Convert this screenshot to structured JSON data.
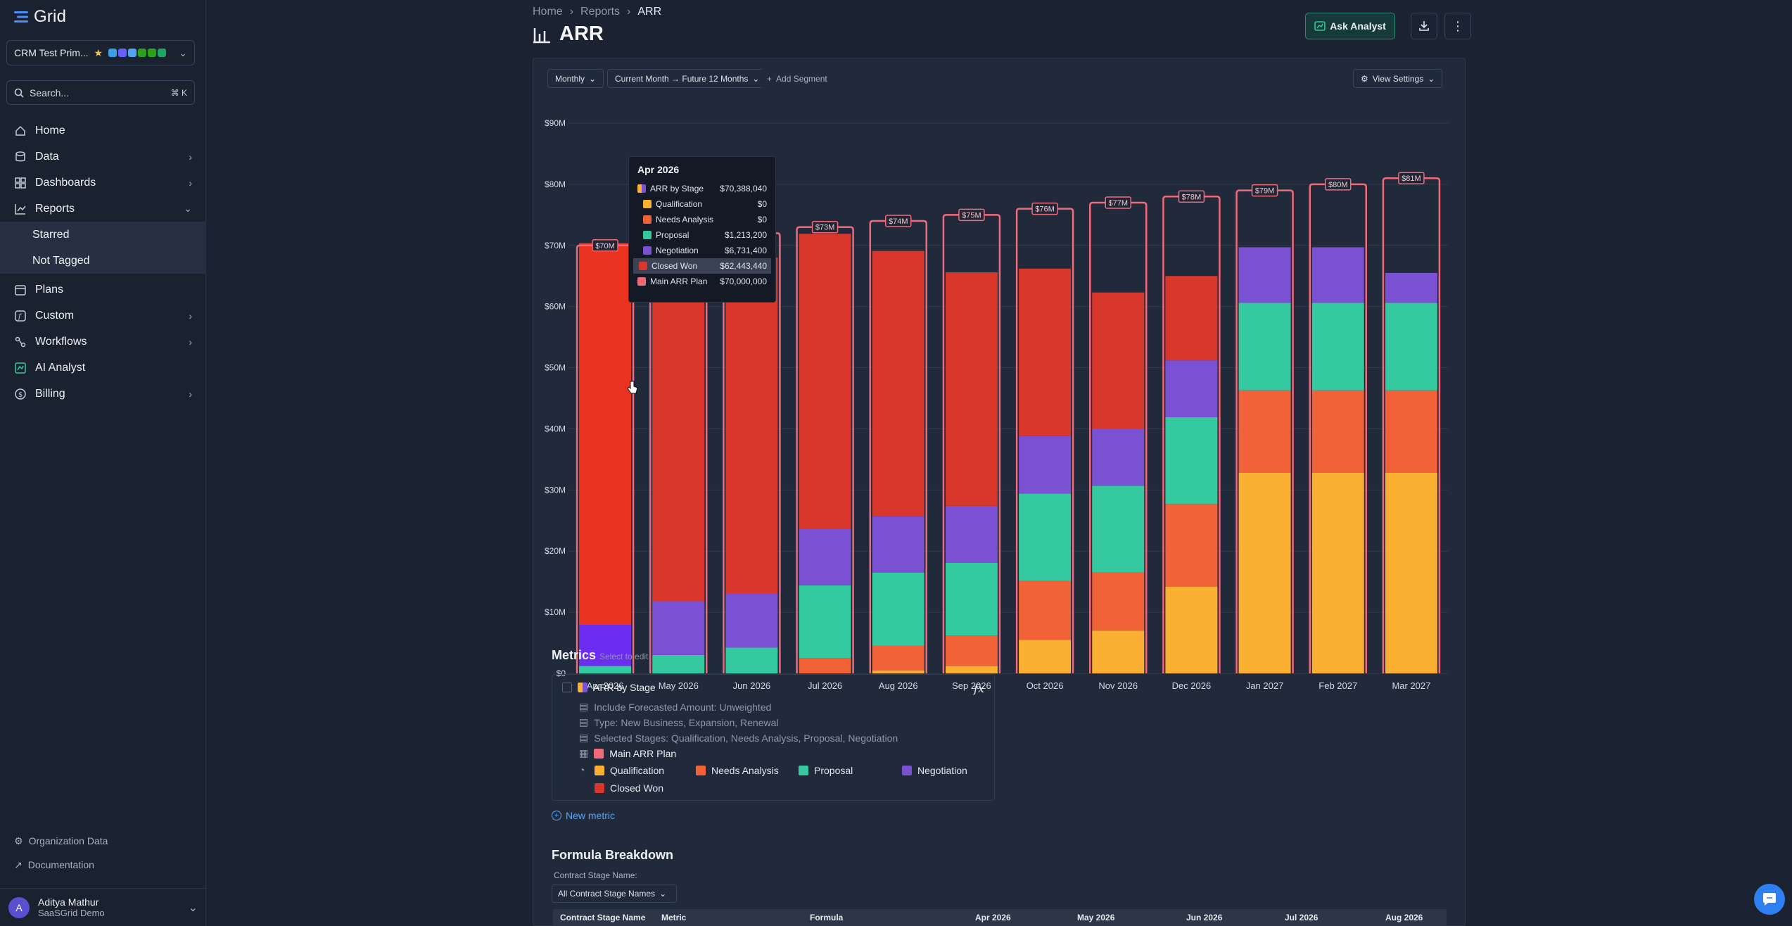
{
  "app": {
    "name": "Grid"
  },
  "workspace": {
    "name": "CRM Test Prim..."
  },
  "search": {
    "label": "Search...",
    "shortcut": "⌘ K"
  },
  "nav": {
    "home": "Home",
    "data": "Data",
    "dashboards": "Dashboards",
    "reports": "Reports",
    "starred": "Starred",
    "not_tagged": "Not Tagged",
    "plans": "Plans",
    "custom": "Custom",
    "workflows": "Workflows",
    "ai_analyst": "AI Analyst",
    "billing": "Billing"
  },
  "footer": {
    "org_data": "Organization Data",
    "docs": "Documentation"
  },
  "user": {
    "name": "Aditya Mathur",
    "org": "SaaSGrid Demo",
    "initial": "A"
  },
  "breadcrumb": {
    "home": "Home",
    "reports": "Reports",
    "current": "ARR"
  },
  "page": {
    "title": "ARR"
  },
  "toolbar": {
    "ask_analyst": "Ask Analyst"
  },
  "filters": {
    "granularity": "Monthly",
    "range": "Current Month → Future 12 Months",
    "add_segment": "Add Segment",
    "view_settings": "View Settings"
  },
  "tooltip": {
    "title": "Apr 2026",
    "rows": [
      {
        "label": "ARR by Stage",
        "value": "$70,388,040"
      },
      {
        "label": "Qualification",
        "value": "$0"
      },
      {
        "label": "Needs Analysis",
        "value": "$0"
      },
      {
        "label": "Proposal",
        "value": "$1,213,200"
      },
      {
        "label": "Negotiation",
        "value": "$6,731,400"
      },
      {
        "label": "Closed Won",
        "value": "$62,443,440"
      },
      {
        "label": "Main ARR Plan",
        "value": "$70,000,000"
      }
    ]
  },
  "metrics": {
    "title": "Metrics",
    "subtitle": "Select to edit",
    "main_name": "ARR by Stage",
    "line1": "Include Forecasted Amount: Unweighted",
    "line2": "Type: New Business, Expansion, Renewal",
    "line3": "Selected Stages: Qualification, Needs Analysis, Proposal, Negotiation",
    "plan": "Main ARR Plan",
    "legend": [
      "Qualification",
      "Needs Analysis",
      "Proposal",
      "Negotiation",
      "Closed Won"
    ],
    "new_metric": "New metric"
  },
  "formula": {
    "title": "Formula Breakdown",
    "filter_label": "Contract Stage Name:",
    "filter_value": "All Contract Stage Names",
    "columns": [
      "Contract Stage Name",
      "Metric",
      "Formula",
      "Apr 2026",
      "May 2026",
      "Jun 2026",
      "Jul 2026",
      "Aug 2026"
    ]
  },
  "colors": {
    "qualification": "#fbb031",
    "needs_analysis": "#f16239",
    "proposal": "#35c9a0",
    "negotiation": "#7b51d4",
    "closed_won": "#d9362c",
    "plan": "#f06a7c",
    "accent": "#2d8a78"
  },
  "chart_data": {
    "type": "bar",
    "stacked": true,
    "categories": [
      "Apr 2026",
      "May 2026",
      "Jun 2026",
      "Jul 2026",
      "Aug 2026",
      "Sep 2026",
      "Oct 2026",
      "Nov 2026",
      "Dec 2026",
      "Jan 2027",
      "Feb 2027",
      "Mar 2027"
    ],
    "ylim": [
      0,
      90
    ],
    "y_ticks": [
      "$0",
      "$10M",
      "$20M",
      "$30M",
      "$40M",
      "$50M",
      "$60M",
      "$70M",
      "$80M",
      "$90M"
    ],
    "series": [
      {
        "name": "Qualification",
        "values": [
          0,
          0,
          0,
          0,
          0.5,
          1.2,
          5.5,
          7,
          14.2,
          32.8,
          32.8,
          32.8
        ]
      },
      {
        "name": "Needs Analysis",
        "values": [
          0,
          0,
          0,
          2.5,
          4,
          5,
          9.6,
          9.5,
          13.5,
          13.5,
          13.5,
          13.5
        ]
      },
      {
        "name": "Proposal",
        "values": [
          1.21,
          3,
          4.2,
          11.9,
          12,
          11.9,
          14.3,
          14.2,
          14.2,
          14.3,
          14.3,
          14.3
        ]
      },
      {
        "name": "Negotiation",
        "values": [
          6.73,
          8.8,
          8.8,
          9.3,
          9.2,
          9.3,
          9.4,
          9.3,
          9.3,
          9.1,
          9.1,
          4.9
        ]
      },
      {
        "name": "Closed Won",
        "values": [
          62.44,
          56,
          55,
          48.2,
          43.4,
          38.2,
          27.4,
          22.3,
          13.8,
          0,
          0,
          0
        ]
      }
    ],
    "plan": {
      "name": "Main ARR Plan",
      "values": [
        70,
        71,
        72,
        73,
        74,
        75,
        76,
        77,
        78,
        79,
        80,
        81
      ]
    },
    "plan_labels": [
      "$70M",
      "$71M",
      "$72M",
      "$73M",
      "$74M",
      "$75M",
      "$76M",
      "$77M",
      "$78M",
      "$79M",
      "$80M",
      "$81M"
    ],
    "grid": true
  }
}
